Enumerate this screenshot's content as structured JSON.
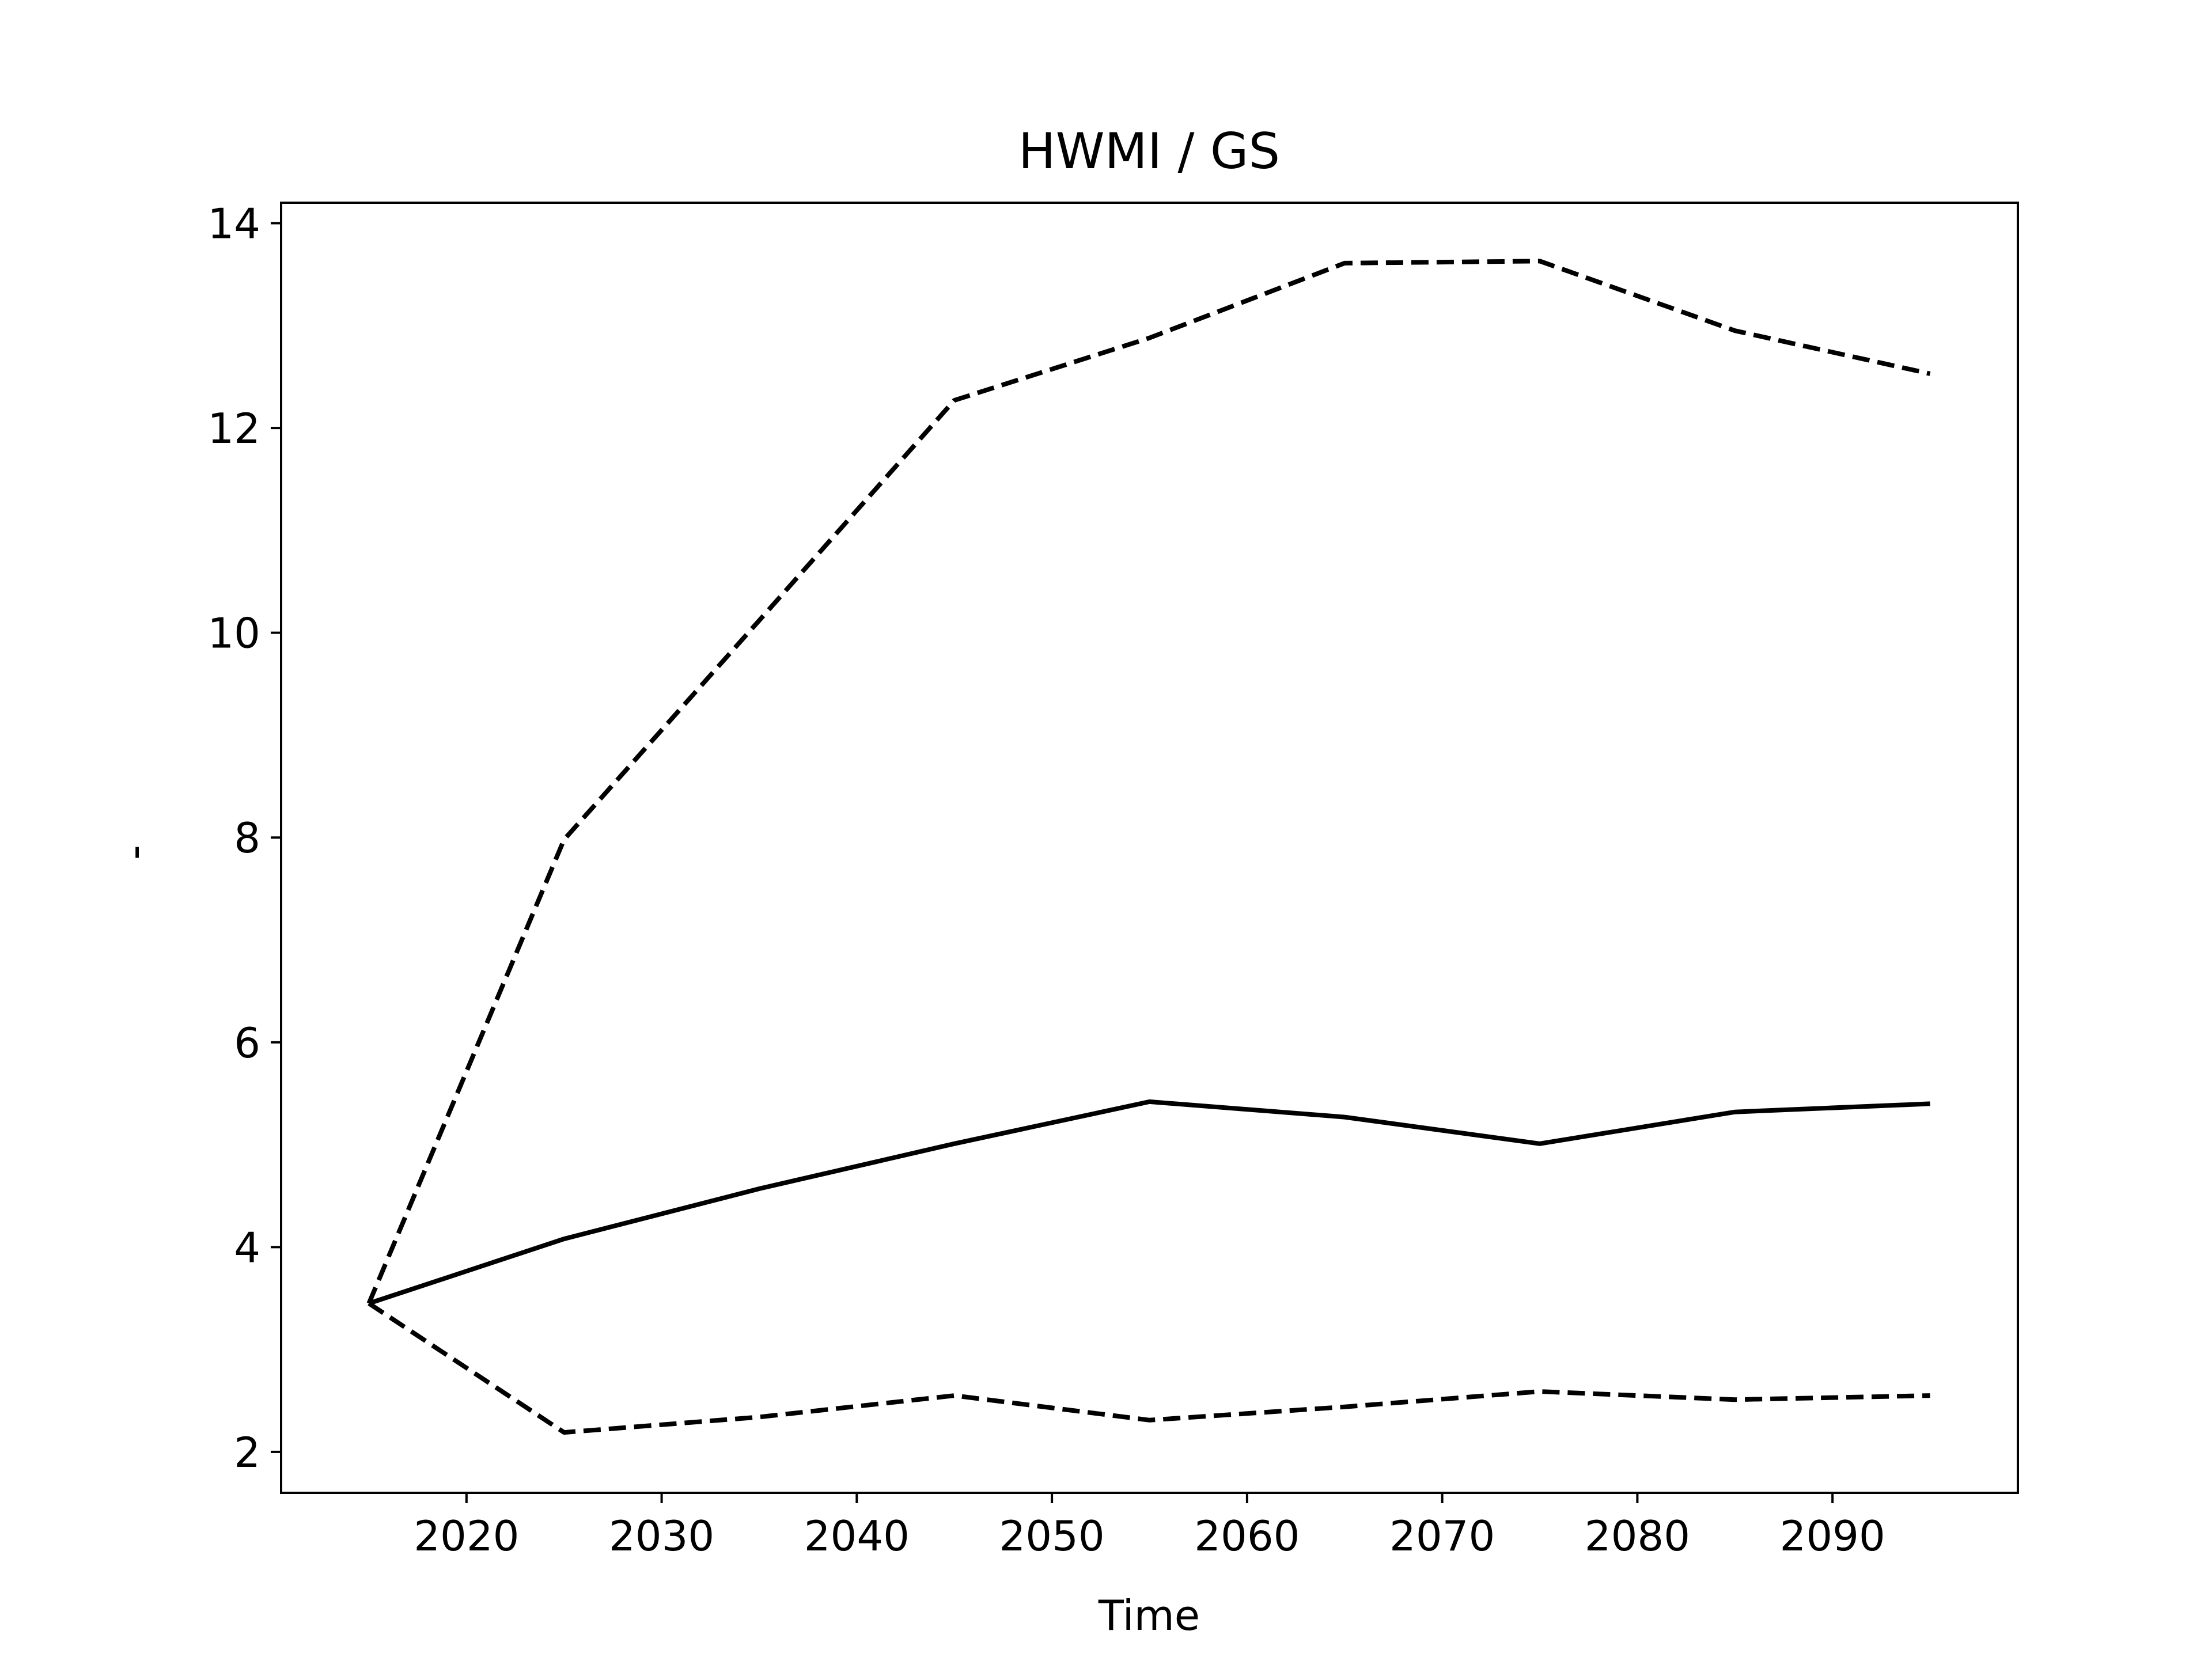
{
  "chart_data": {
    "type": "line",
    "title": "HWMI / GS",
    "xlabel": "Time",
    "ylabel": "-",
    "xlim": [
      2010.5,
      2099.5
    ],
    "ylim": [
      1.6,
      14.2
    ],
    "xticks": [
      2020,
      2030,
      2040,
      2050,
      2060,
      2070,
      2080,
      2090
    ],
    "yticks": [
      2,
      4,
      6,
      8,
      10,
      12,
      14
    ],
    "x": [
      2015,
      2025,
      2035,
      2045,
      2055,
      2065,
      2075,
      2085,
      2095
    ],
    "grid": false,
    "legend": "none",
    "series": [
      {
        "style": "solid",
        "color": "#000000",
        "values": [
          3.45,
          4.08,
          4.57,
          5.01,
          5.42,
          5.27,
          5.01,
          5.32,
          5.4
        ]
      },
      {
        "style": "dashed",
        "color": "#000000",
        "values": [
          3.45,
          7.98,
          10.12,
          12.27,
          12.88,
          13.61,
          13.63,
          12.95,
          12.53
        ]
      },
      {
        "style": "dashed",
        "color": "#000000",
        "values": [
          3.45,
          2.19,
          2.34,
          2.55,
          2.31,
          2.44,
          2.59,
          2.51,
          2.55
        ]
      }
    ]
  }
}
